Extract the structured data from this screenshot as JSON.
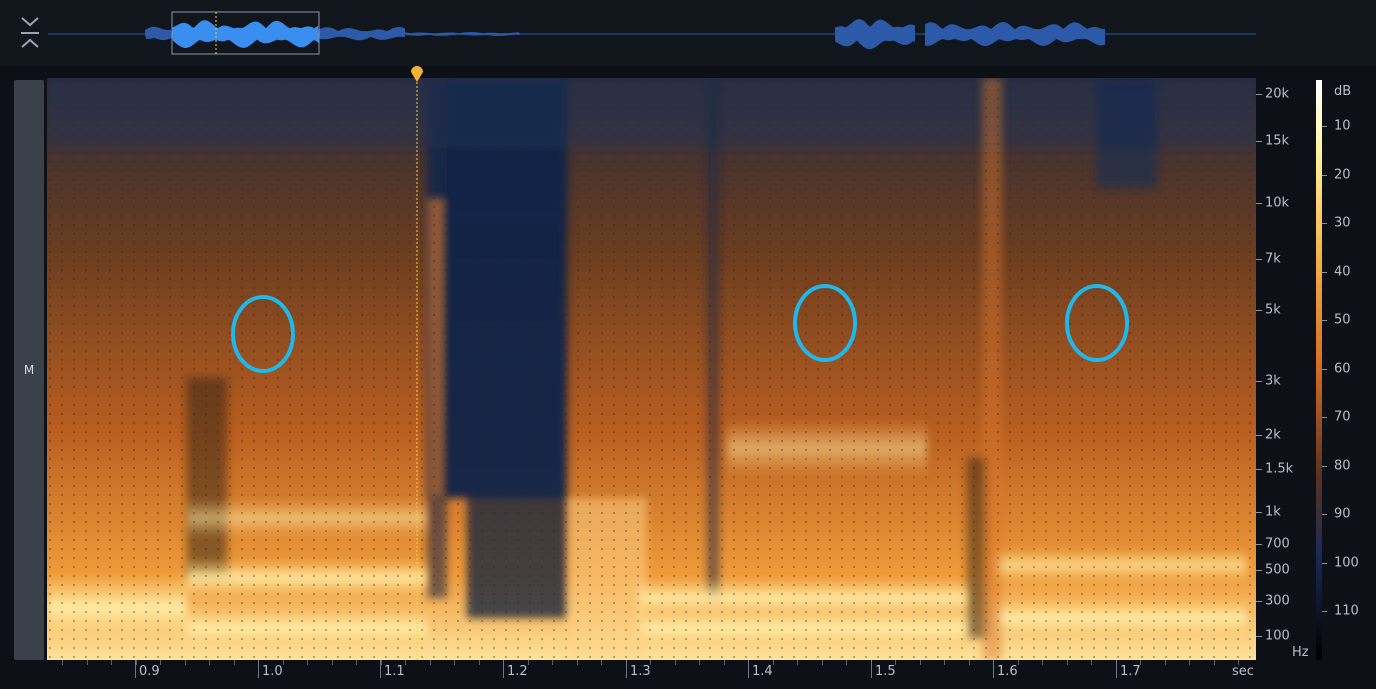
{
  "channel": {
    "label": "M"
  },
  "frequency_axis": {
    "unit": "Hz",
    "ticks": [
      "20k",
      "15k",
      "10k",
      "7k",
      "5k",
      "3k",
      "2k",
      "1.5k",
      "1k",
      "700",
      "500",
      "300",
      "100"
    ]
  },
  "time_axis": {
    "unit": "sec",
    "ticks": [
      "0.9",
      "1.0",
      "1.1",
      "1.2",
      "1.3",
      "1.4",
      "1.5",
      "1.6",
      "1.7"
    ]
  },
  "db_scale": {
    "unit": "dB",
    "ticks": [
      "10",
      "20",
      "30",
      "40",
      "50",
      "60",
      "70",
      "80",
      "90",
      "100",
      "110"
    ]
  },
  "colors": {
    "background": "#0d1117",
    "waveform_selected": "#3a8ef0",
    "waveform": "#2c5aa8",
    "spectrogram_hot": "#ffe9a8",
    "spectrogram_mid": "#d8742a",
    "spectrogram_cold": "#0f1f3d",
    "playhead": "#f2b233",
    "annotation_ring": "#1fb8ea"
  },
  "icons": {
    "collapse": "collapse-chevrons-icon",
    "playhead": "playhead-marker-icon"
  },
  "playhead": {
    "time_sec": 1.12
  }
}
